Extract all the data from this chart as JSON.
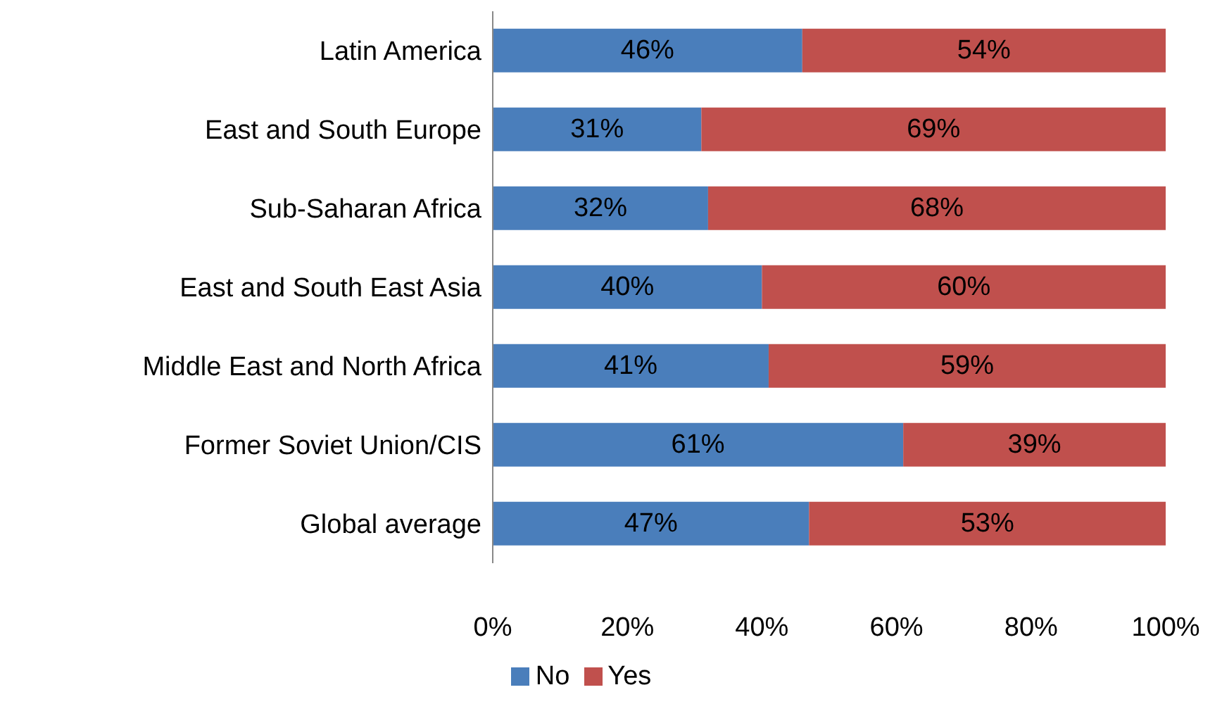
{
  "chart_data": {
    "type": "bar",
    "orientation": "horizontal",
    "stacked": true,
    "categories": [
      "Latin America",
      "East and South Europe",
      "Sub-Saharan Africa",
      "East and South East Asia",
      "Middle East and North Africa",
      "Former Soviet Union/CIS",
      "Global average"
    ],
    "series": [
      {
        "name": "No",
        "color": "#4a7ebb",
        "values": [
          46,
          31,
          32,
          40,
          41,
          61,
          47
        ],
        "value_labels": [
          "46%",
          "31%",
          "32%",
          "40%",
          "41%",
          "61%",
          "47%"
        ]
      },
      {
        "name": "Yes",
        "color": "#c0504d",
        "values": [
          54,
          69,
          68,
          60,
          59,
          39,
          53
        ],
        "value_labels": [
          "54%",
          "69%",
          "68%",
          "60%",
          "59%",
          "39%",
          "53%"
        ]
      }
    ],
    "xlim": [
      0,
      100
    ],
    "xticks": [
      {
        "value": 0,
        "label": "0%"
      },
      {
        "value": 20,
        "label": "20%"
      },
      {
        "value": 40,
        "label": "40%"
      },
      {
        "value": 60,
        "label": "60%"
      },
      {
        "value": 80,
        "label": "80%"
      },
      {
        "value": 100,
        "label": "100%"
      }
    ],
    "grid": false,
    "legend": "bottom"
  }
}
